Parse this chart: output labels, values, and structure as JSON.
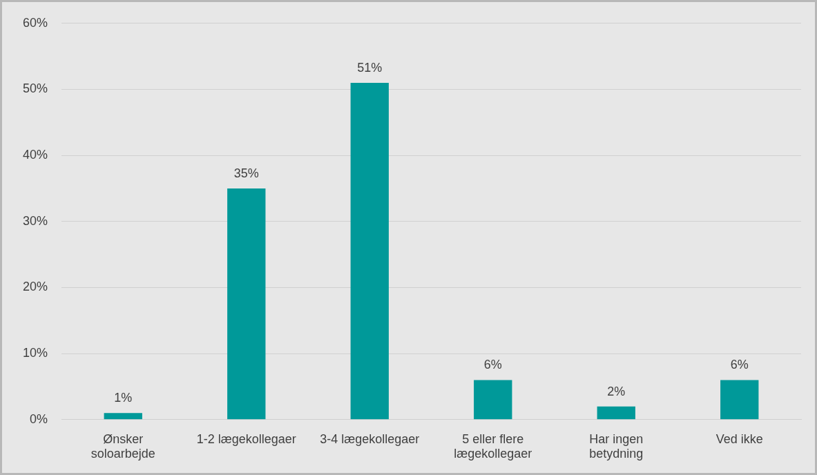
{
  "chart_data": {
    "type": "bar",
    "categories": [
      "Ønsker soloarbejde",
      "1-2 lægekollegaer",
      "3-4 lægekollegaer",
      "5 eller flere lægekollegaer",
      "Har ingen betydning",
      "Ved ikke"
    ],
    "values": [
      1,
      35,
      51,
      6,
      2,
      6
    ],
    "color": "#009999",
    "ylim": [
      0,
      60
    ],
    "yticks": [
      {
        "value": 0,
        "label": "0%"
      },
      {
        "value": 10,
        "label": "10%"
      },
      {
        "value": 20,
        "label": "20%"
      },
      {
        "value": 30,
        "label": "30%"
      },
      {
        "value": 40,
        "label": "40%"
      },
      {
        "value": 50,
        "label": "50%"
      },
      {
        "value": 60,
        "label": "60%"
      }
    ],
    "value_labels": [
      "1%",
      "35%",
      "51%",
      "6%",
      "2%",
      "6%"
    ],
    "grid": "y"
  }
}
